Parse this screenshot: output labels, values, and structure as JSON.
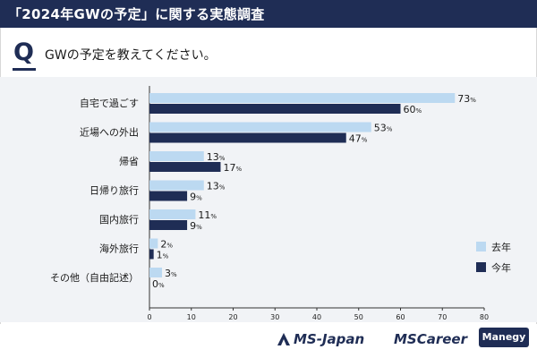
{
  "title": "「2024年GWの予定」に関する実態調査",
  "question": {
    "mark": "Q",
    "text": "GWの予定を教えてください。"
  },
  "chart_data": {
    "type": "bar",
    "orientation": "horizontal",
    "categories": [
      "自宅で過ごす",
      "近場への外出",
      "帰省",
      "日帰り旅行",
      "国内旅行",
      "海外旅行",
      "その他（自由記述）"
    ],
    "series": [
      {
        "name": "去年",
        "values": [
          73,
          53,
          13,
          13,
          11,
          2,
          3
        ],
        "color": "#bcd9f1"
      },
      {
        "name": "今年",
        "values": [
          60,
          47,
          17,
          9,
          9,
          1,
          0
        ],
        "color": "#1f2d55"
      }
    ],
    "value_suffix": "%",
    "xlim": [
      0,
      80
    ],
    "xticks": [
      0,
      10,
      20,
      30,
      40,
      50,
      60,
      70,
      80
    ],
    "legend_position": "bottom-right",
    "grid": false
  },
  "footer": {
    "brand1": "MS-Japan",
    "brand2": "MSCareer",
    "brand3": "Manegy"
  }
}
